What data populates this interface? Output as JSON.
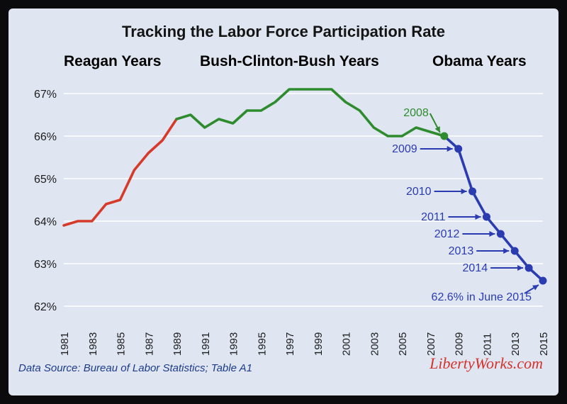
{
  "chart_data": {
    "type": "line",
    "title": "Tracking the Labor Force Participation Rate",
    "eras": [
      {
        "label": "Reagan Years",
        "color": "#d63a2a"
      },
      {
        "label": "Bush-Clinton-Bush Years",
        "color": "#2e8b2e"
      },
      {
        "label": "Obama Years",
        "color": "#2b3bb0"
      }
    ],
    "y_ticks": [
      "67%",
      "66%",
      "65%",
      "64%",
      "63%",
      "62%"
    ],
    "ylim": [
      62,
      67.4
    ],
    "x_ticks": [
      "1981",
      "1983",
      "1985",
      "1987",
      "1989",
      "1991",
      "1993",
      "1995",
      "1997",
      "1999",
      "2001",
      "2003",
      "2005",
      "2007",
      "2009",
      "2011",
      "2013",
      "2015"
    ],
    "xlim": [
      1981,
      2015
    ],
    "grid": true,
    "series": [
      {
        "color": "#d63a2a",
        "x": [
          1981,
          1982,
          1983,
          1984,
          1985,
          1986,
          1987,
          1988,
          1989
        ],
        "y": [
          63.9,
          64.0,
          64.0,
          64.4,
          64.5,
          65.2,
          65.6,
          65.9,
          66.4
        ]
      },
      {
        "color": "#2e8b2e",
        "x": [
          1989,
          1990,
          1991,
          1992,
          1993,
          1994,
          1995,
          1996,
          1997,
          1998,
          1999,
          2000,
          2001,
          2002,
          2003,
          2004,
          2005,
          2006,
          2007,
          2008
        ],
        "y": [
          66.4,
          66.5,
          66.2,
          66.4,
          66.3,
          66.6,
          66.6,
          66.8,
          67.1,
          67.1,
          67.1,
          67.1,
          66.8,
          66.6,
          66.2,
          66.0,
          66.0,
          66.2,
          66.1,
          66.0
        ]
      },
      {
        "color": "#2b3bb0",
        "x": [
          2008,
          2009,
          2010,
          2011,
          2012,
          2013,
          2014,
          2015
        ],
        "y": [
          66.0,
          65.7,
          64.7,
          64.1,
          63.7,
          63.3,
          62.9,
          62.6
        ]
      }
    ],
    "annotations": [
      {
        "text": "2008",
        "x": 2008,
        "y": 66.0,
        "color": "#2e8b2e"
      },
      {
        "text": "2009",
        "x": 2009,
        "y": 65.7,
        "color": "#2b3bb0"
      },
      {
        "text": "2010",
        "x": 2010,
        "y": 64.7,
        "color": "#2b3bb0"
      },
      {
        "text": "2011",
        "x": 2011,
        "y": 64.1,
        "color": "#2b3bb0"
      },
      {
        "text": "2012",
        "x": 2012,
        "y": 63.7,
        "color": "#2b3bb0"
      },
      {
        "text": "2013",
        "x": 2013,
        "y": 63.3,
        "color": "#2b3bb0"
      },
      {
        "text": "2014",
        "x": 2014,
        "y": 62.9,
        "color": "#2b3bb0"
      },
      {
        "text": "62.6% in June 2015",
        "x": 2015,
        "y": 62.6,
        "color": "#2b3bb0"
      }
    ],
    "source": "Data Source: Bureau of Labor Statistics;  Table A1",
    "brand": "LibertyWorks.com"
  }
}
